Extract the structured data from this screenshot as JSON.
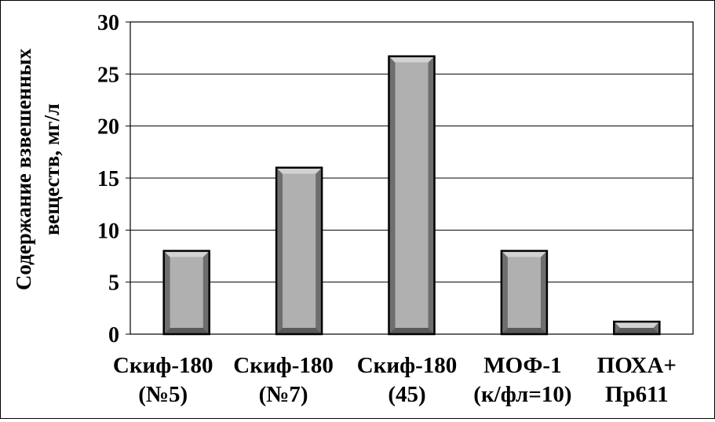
{
  "chart_data": {
    "type": "bar",
    "categories": [
      [
        "Скиф-180",
        "(№5)"
      ],
      [
        "Скиф-180",
        "(№7)"
      ],
      [
        "Скиф-180",
        "(45)"
      ],
      [
        "МОФ-1",
        "(к/фл=10)"
      ],
      [
        "ПОХА+",
        "Пр611"
      ]
    ],
    "values": [
      8,
      16,
      26.7,
      8,
      1.2
    ],
    "ylabel_lines": [
      "Содержание взвешенных",
      "веществ, мг/л"
    ],
    "ylim": [
      0,
      30
    ],
    "yticks": [
      0,
      5,
      10,
      15,
      20,
      25,
      30
    ],
    "grid": true,
    "colors": {
      "bar_face": "#b0b0b0",
      "bar_top": "#d2d2d2",
      "bar_side_dark": "#6e6e6e",
      "bar_side_mid": "#8c8c8c",
      "bar_outline": "#000000",
      "grid": "#000000"
    }
  }
}
